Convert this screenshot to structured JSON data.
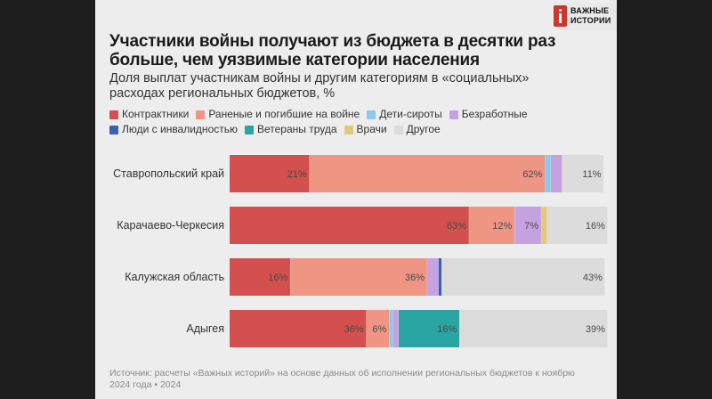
{
  "brand": {
    "line1": "ВАЖНЫЕ",
    "line2": "ИСТОРИИ"
  },
  "title": {
    "line1": "Участники войны получают из бюджета в десятки раз",
    "line2": "больше, чем уязвимые категории населения"
  },
  "subtitle": {
    "line1": "Доля выплат участникам войны и другим категориям в «социальных»",
    "line2": "расходах региональных бюджетов, %"
  },
  "source": {
    "line1": "Источник: расчеты «Важных историй» на основе данных об исполнении региональных бюджетов к ноябрю",
    "line2": "2024 года • 2024"
  },
  "chart_data": {
    "type": "bar",
    "orientation": "horizontal",
    "stacked": true,
    "xlim": [
      0,
      100
    ],
    "legend_position": "top",
    "categories": [
      "Ставропольский край",
      "Карачаево-Черкесия",
      "Калужская область",
      "Адыгея"
    ],
    "series": [
      {
        "name": "Контрактники",
        "color": "#d4504f",
        "values": [
          21,
          63,
          16,
          36
        ],
        "labels": [
          "21%",
          "63%",
          "16%",
          "36%"
        ]
      },
      {
        "name": "Раненые и погибшие на войне",
        "color": "#ef9583",
        "values": [
          62,
          12,
          36,
          6
        ],
        "labels": [
          "62%",
          "12%",
          "36%",
          "6%"
        ]
      },
      {
        "name": "Дети-сироты",
        "color": "#8fc8ea",
        "values": [
          1.5,
          0,
          0,
          1
        ],
        "labels": [
          "",
          "",
          "",
          ""
        ]
      },
      {
        "name": "Безработные",
        "color": "#c5a2df",
        "values": [
          3,
          7,
          3,
          1.5
        ],
        "labels": [
          "",
          "7%",
          "",
          ""
        ]
      },
      {
        "name": "Люди с инвалидностью",
        "color": "#3a5fb0",
        "values": [
          0,
          0,
          0.8,
          0
        ],
        "labels": [
          "",
          "",
          "",
          ""
        ]
      },
      {
        "name": "Ветераны труда",
        "color": "#2aa6a2",
        "values": [
          0,
          0,
          0,
          16
        ],
        "labels": [
          "",
          "",
          "",
          "16%"
        ]
      },
      {
        "name": "Врачи",
        "color": "#e4c97a",
        "values": [
          0,
          1.5,
          0,
          0
        ],
        "labels": [
          "",
          "",
          "",
          ""
        ]
      },
      {
        "name": "Другое",
        "color": "#dcdcdc",
        "values": [
          11,
          16,
          43,
          39
        ],
        "labels": [
          "11%",
          "16%",
          "43%",
          "39%"
        ]
      }
    ]
  }
}
